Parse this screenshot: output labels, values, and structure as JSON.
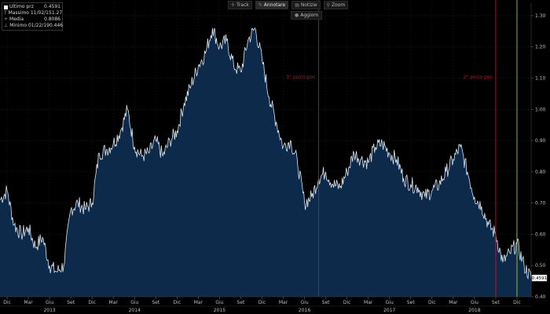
{
  "toolbar": {
    "track": "Track",
    "annotate": "Annotare",
    "news": "Notizie",
    "zoom": "Zoom",
    "refresh": "Aggiorn"
  },
  "legend": [
    {
      "label": "Ultimo prz",
      "value": "0.4591",
      "marker": "swatch"
    },
    {
      "label": "Massimo 11/02/15",
      "value": "1.27",
      "marker": "T"
    },
    {
      "label": "Media",
      "value": "0.8086",
      "marker": "+"
    },
    {
      "label": "Minimo 01/22/19",
      "value": "0.446",
      "marker": "⊥"
    }
  ],
  "colors": {
    "background": "#000000",
    "area_fill": "#0e2a4a",
    "line": "#d9e6f2",
    "grid": "#1f2a36",
    "annotation_red": "#c0142a",
    "annotation_green": "#9acd32",
    "axis_text": "#bfbfbf"
  },
  "chart_data": {
    "type": "area",
    "title": "",
    "xlabel": "",
    "ylabel": "",
    "ylim": [
      0.4,
      1.34
    ],
    "ytick_values": [
      0.4,
      0.5,
      0.6,
      0.7,
      0.8,
      0.9,
      1.0,
      1.1,
      1.2,
      1.3
    ],
    "ytick_labels": [
      "0.40",
      "0.50",
      "0.60",
      "0.70",
      "0.80",
      "0.90",
      "1.00",
      "1.10",
      "1.20",
      "1.30"
    ],
    "x_months": [
      "Dic",
      "Mar",
      "Giu",
      "Set",
      "Dic",
      "Mar",
      "Giu",
      "Set",
      "Dic",
      "Mar",
      "Giu",
      "Set",
      "Dic",
      "Mar",
      "Giu",
      "Set",
      "Dic",
      "Mar",
      "Giu",
      "Set",
      "Dic",
      "Mar",
      "Giu",
      "Set",
      "Dic"
    ],
    "x_years": [
      {
        "label": "2013",
        "month_index": 2
      },
      {
        "label": "2014",
        "month_index": 6
      },
      {
        "label": "2015",
        "month_index": 10
      },
      {
        "label": "2016",
        "month_index": 14
      },
      {
        "label": "2017",
        "month_index": 18
      },
      {
        "label": "2018",
        "month_index": 22
      }
    ],
    "x_start": "2012-11",
    "x_end": "2019-02",
    "series": [
      {
        "x": [
          "2012-11",
          "2012-12",
          "2013-01",
          "2013-02",
          "2013-03",
          "2013-04",
          "2013-05",
          "2013-06",
          "2013-07",
          "2013-08",
          "2013-09",
          "2013-10",
          "2013-11",
          "2013-12",
          "2014-01",
          "2014-02",
          "2014-03",
          "2014-04",
          "2014-05",
          "2014-06",
          "2014-07",
          "2014-08",
          "2014-09",
          "2014-10",
          "2014-11",
          "2014-12",
          "2015-01",
          "2015-02",
          "2015-03",
          "2015-04",
          "2015-05",
          "2015-06",
          "2015-07",
          "2015-08",
          "2015-09",
          "2015-10",
          "2015-11",
          "2015-12",
          "2016-01",
          "2016-02",
          "2016-03",
          "2016-04",
          "2016-05",
          "2016-06",
          "2016-07",
          "2016-08",
          "2016-09",
          "2016-10",
          "2016-11",
          "2016-12",
          "2017-01",
          "2017-02",
          "2017-03",
          "2017-04",
          "2017-05",
          "2017-06",
          "2017-07",
          "2017-08",
          "2017-09",
          "2017-10",
          "2017-11",
          "2017-12",
          "2018-01",
          "2018-02",
          "2018-03",
          "2018-04",
          "2018-05",
          "2018-06",
          "2018-07",
          "2018-08",
          "2018-09",
          "2018-10",
          "2018-11",
          "2018-12",
          "2019-01",
          "2019-02"
        ],
        "values": [
          0.71,
          0.74,
          0.63,
          0.6,
          0.62,
          0.56,
          0.59,
          0.5,
          0.48,
          0.5,
          0.68,
          0.7,
          0.68,
          0.7,
          0.86,
          0.87,
          0.89,
          0.93,
          1.0,
          0.88,
          0.85,
          0.86,
          0.9,
          0.85,
          0.9,
          0.93,
          1.02,
          1.08,
          1.14,
          1.18,
          1.26,
          1.2,
          1.22,
          1.14,
          1.12,
          1.22,
          1.26,
          1.16,
          1.04,
          0.96,
          0.88,
          0.9,
          0.83,
          0.7,
          0.72,
          0.78,
          0.8,
          0.76,
          0.75,
          0.8,
          0.86,
          0.84,
          0.83,
          0.88,
          0.89,
          0.86,
          0.84,
          0.78,
          0.76,
          0.75,
          0.72,
          0.74,
          0.76,
          0.8,
          0.84,
          0.88,
          0.8,
          0.72,
          0.69,
          0.63,
          0.6,
          0.51,
          0.54,
          0.57,
          0.5,
          0.46
        ]
      }
    ],
    "annotations": [
      {
        "label": "1° picco pnc",
        "x": "2016-08",
        "color": "red"
      },
      {
        "label": "2° picco pnc",
        "x": "2018-09",
        "color": "red"
      },
      {
        "label": "",
        "x": "2018-12",
        "color": "green"
      }
    ],
    "last_value_label": "0.4591",
    "grid": true,
    "y_axis_side": "right"
  }
}
